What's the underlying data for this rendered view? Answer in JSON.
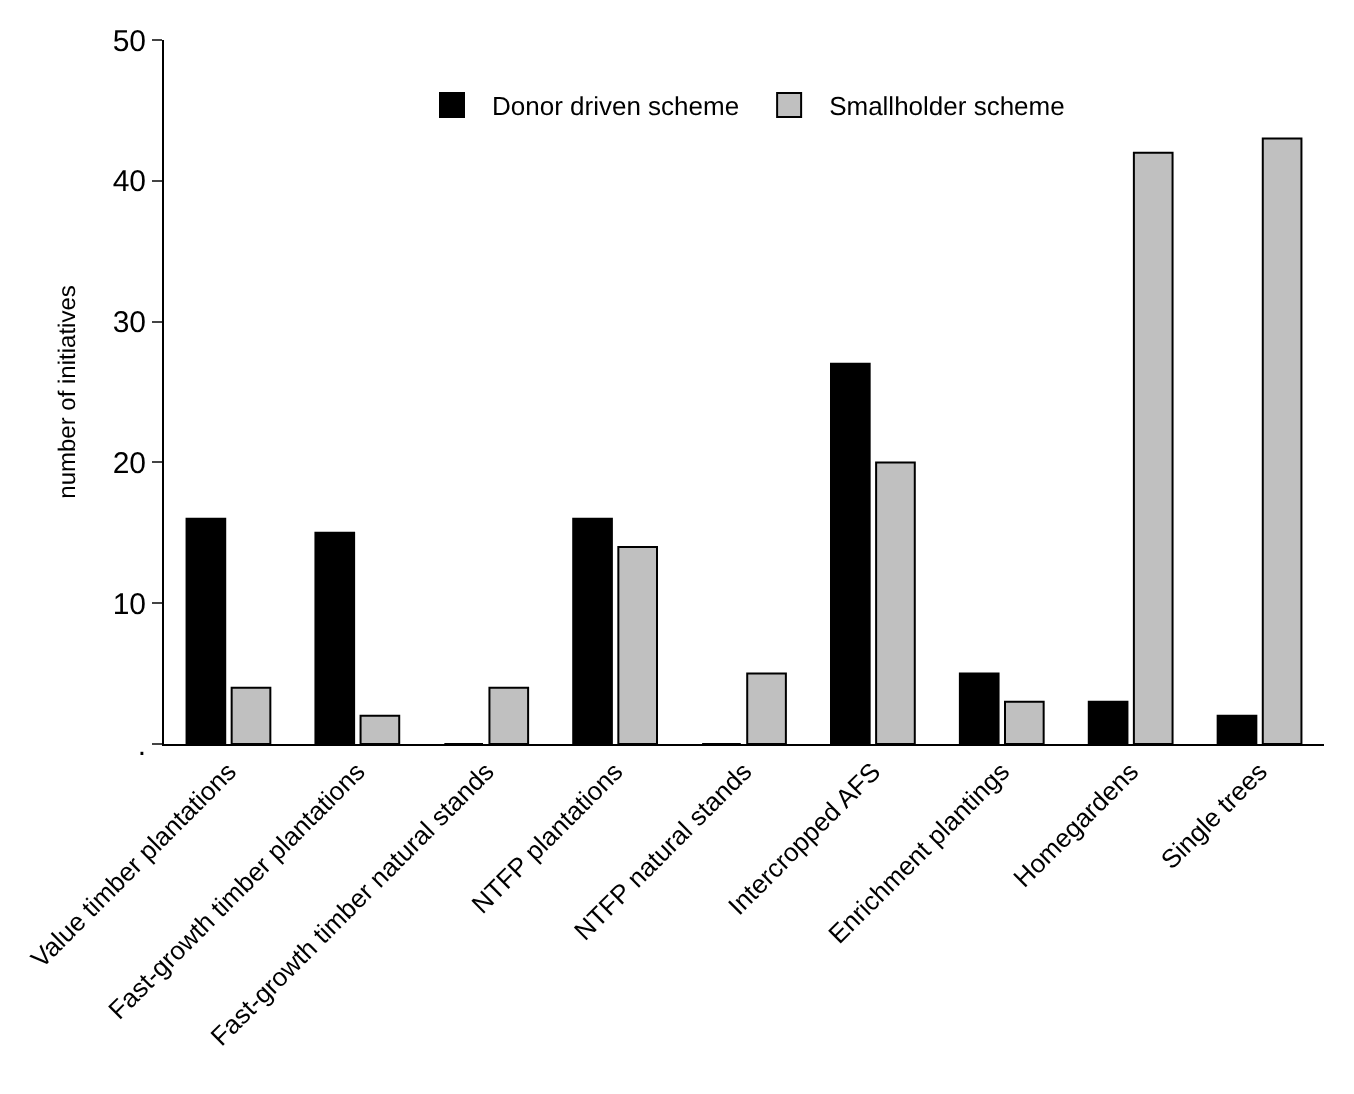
{
  "chart_data": {
    "type": "bar",
    "ylabel": "number of initiatives",
    "categories": [
      "Value timber plantations",
      "Fast-growth timber plantations",
      "Fast-growth timber natural stands",
      "NTFP plantations",
      "NTFP natural stands",
      "Intercropped AFS",
      "Enrichment plantings",
      "Homegardens",
      "Single trees"
    ],
    "series": [
      {
        "name": "Donor driven scheme",
        "color": "#000000",
        "values": [
          16,
          15,
          0,
          16,
          0,
          27,
          5,
          3,
          2
        ]
      },
      {
        "name": "Smallholder scheme",
        "color": "#c0c0c0",
        "values": [
          4,
          2,
          4,
          14,
          5,
          20,
          3,
          42,
          43
        ]
      }
    ],
    "ylim": [
      0,
      50
    ],
    "yticks": [
      {
        "value": 0,
        "label": "."
      },
      10,
      20,
      30,
      40,
      50
    ],
    "grid": false,
    "legend": "top"
  }
}
